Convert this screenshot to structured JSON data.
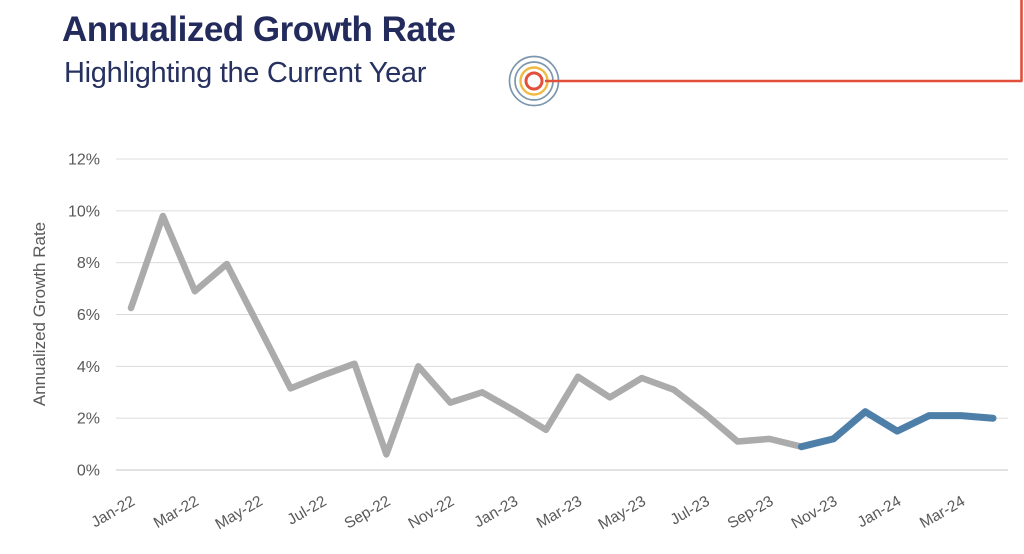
{
  "header": {
    "title": "Annualized Growth Rate",
    "subtitle": "Highlighting the Current Year"
  },
  "icons": {
    "bullseye": "target-bullseye-icon"
  },
  "colors": {
    "title_navy": "#222B5B",
    "axis_text_gray": "#595959",
    "gridline": "#DCDCDC",
    "axis_line": "#C6C6C6",
    "series_prior": "#ABABAB",
    "series_current": "#4E7FA9",
    "accent_red": "#E2503C",
    "accent_yellow": "#EFBA42",
    "accent_slate": "#7B96AD"
  },
  "chart_data": {
    "type": "line",
    "title": "Annualized Growth Rate",
    "subtitle": "Highlighting the Current Year",
    "xlabel": "",
    "ylabel": "Annualized Growth Rate",
    "x": [
      "Jan-22",
      "Feb-22",
      "Mar-22",
      "Apr-22",
      "May-22",
      "Jun-22",
      "Jul-22",
      "Aug-22",
      "Sep-22",
      "Oct-22",
      "Nov-22",
      "Dec-22",
      "Jan-23",
      "Feb-23",
      "Mar-23",
      "Apr-23",
      "May-23",
      "Jun-23",
      "Jul-23",
      "Aug-23",
      "Sep-23",
      "Oct-23",
      "Nov-23",
      "Dec-23",
      "Jan-24",
      "Feb-24",
      "Mar-24",
      "Apr-24"
    ],
    "x_tick_labels_shown": [
      "Jan-22",
      "Mar-22",
      "May-22",
      "Jul-22",
      "Sep-22",
      "Nov-22",
      "Jan-23",
      "Mar-23",
      "May-23",
      "Jul-23",
      "Sep-23",
      "Nov-23",
      "Jan-24",
      "Mar-24"
    ],
    "x_tick_every": 2,
    "values_pct": [
      6.25,
      9.8,
      6.9,
      7.95,
      5.55,
      3.15,
      3.65,
      4.1,
      0.6,
      4.0,
      2.6,
      3.0,
      2.3,
      1.55,
      3.6,
      2.8,
      3.55,
      3.1,
      2.15,
      1.1,
      1.2,
      0.9,
      1.2,
      2.25,
      1.5,
      2.1,
      2.1,
      2.0
    ],
    "series": [
      {
        "name": "prior-period",
        "color": "#ABABAB",
        "start_index": 0,
        "values": [
          6.25,
          9.8,
          6.9,
          7.95,
          5.55,
          3.15,
          3.65,
          4.1,
          0.6,
          4.0,
          2.6,
          3.0,
          2.3,
          1.55,
          3.6,
          2.8,
          3.55,
          3.1,
          2.15,
          1.1,
          1.2,
          0.9
        ]
      },
      {
        "name": "current-year-highlight",
        "color": "#4E7FA9",
        "start_index": 21,
        "values": [
          0.9,
          1.2,
          2.25,
          1.5,
          2.1,
          2.1,
          2.0
        ]
      }
    ],
    "highlight_start_index": 21,
    "y_ticks": [
      "0%",
      "2%",
      "4%",
      "6%",
      "8%",
      "10%",
      "12%"
    ],
    "y_tick_values": [
      0,
      2,
      4,
      6,
      8,
      10,
      12
    ],
    "ylim": [
      0,
      12
    ],
    "grid": "horizontal",
    "legend": "none"
  }
}
